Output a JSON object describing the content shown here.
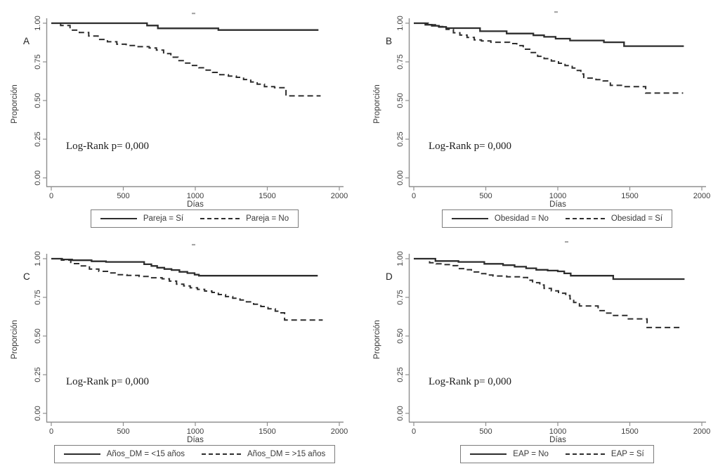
{
  "figure": {
    "background": "#ffffff",
    "line_color": "#2d2d2d",
    "axis_color": "#8f8f8f",
    "text_color": "#3d3d3d",
    "legend_border_color": "#7c7c7c"
  },
  "axes": {
    "x_label": "Días",
    "y_label": "Proporción",
    "x_ticks": [
      "0",
      "500",
      "1000",
      "1500",
      "2000"
    ],
    "y_ticks": [
      "1.00",
      "0.75",
      "0.50",
      "0.25",
      "0.00"
    ]
  },
  "chart_data": [
    {
      "type": "line",
      "subtype": "kaplan-meier-step",
      "panel": "A",
      "annotation": "Log-Rank p= 0,000",
      "xlabel": "Días",
      "ylabel": "Proporción",
      "xlim": [
        0,
        2000
      ],
      "ylim": [
        0,
        1
      ],
      "x_tick_values": [
        0,
        500,
        1000,
        1500,
        2000
      ],
      "y_tick_values": [
        1.0,
        0.75,
        0.5,
        0.25,
        0.0
      ],
      "grid": false,
      "legend_position": "bottom",
      "series": [
        {
          "name": "Pareja = Sí",
          "style": "solid",
          "points": [
            [
              0,
              1
            ],
            [
              665,
              0.985
            ],
            [
              740,
              0.967
            ],
            [
              1160,
              0.956
            ],
            [
              1855,
              0.956
            ]
          ]
        },
        {
          "name": "Pareja = No",
          "style": "dashed",
          "points": [
            [
              0,
              1
            ],
            [
              65,
              0.985
            ],
            [
              130,
              0.955
            ],
            [
              195,
              0.94
            ],
            [
              260,
              0.917
            ],
            [
              325,
              0.895
            ],
            [
              390,
              0.88
            ],
            [
              455,
              0.864
            ],
            [
              520,
              0.856
            ],
            [
              585,
              0.848
            ],
            [
              680,
              0.84
            ],
            [
              730,
              0.826
            ],
            [
              780,
              0.803
            ],
            [
              830,
              0.78
            ],
            [
              880,
              0.758
            ],
            [
              925,
              0.742
            ],
            [
              975,
              0.727
            ],
            [
              1025,
              0.712
            ],
            [
              1075,
              0.697
            ],
            [
              1120,
              0.682
            ],
            [
              1170,
              0.667
            ],
            [
              1230,
              0.658
            ],
            [
              1285,
              0.65
            ],
            [
              1335,
              0.636
            ],
            [
              1385,
              0.62
            ],
            [
              1430,
              0.606
            ],
            [
              1480,
              0.59
            ],
            [
              1550,
              0.583
            ],
            [
              1630,
              0.53
            ],
            [
              1870,
              0.53
            ]
          ]
        }
      ]
    },
    {
      "type": "line",
      "subtype": "kaplan-meier-step",
      "panel": "B",
      "annotation": "Log-Rank p= 0,000",
      "xlabel": "Días",
      "ylabel": "Proporción",
      "xlim": [
        0,
        2000
      ],
      "ylim": [
        0,
        1
      ],
      "x_tick_values": [
        0,
        500,
        1000,
        1500,
        2000
      ],
      "y_tick_values": [
        1.0,
        0.75,
        0.5,
        0.25,
        0.0
      ],
      "grid": false,
      "legend_position": "bottom",
      "series": [
        {
          "name": "Obesidad = No",
          "style": "solid",
          "points": [
            [
              0,
              1
            ],
            [
              80,
              0.99
            ],
            [
              125,
              0.983
            ],
            [
              175,
              0.976
            ],
            [
              225,
              0.968
            ],
            [
              460,
              0.948
            ],
            [
              645,
              0.933
            ],
            [
              830,
              0.922
            ],
            [
              905,
              0.912
            ],
            [
              985,
              0.9
            ],
            [
              1085,
              0.888
            ],
            [
              1320,
              0.877
            ],
            [
              1460,
              0.852
            ],
            [
              1875,
              0.852
            ]
          ]
        },
        {
          "name": "Obesidad = Sí",
          "style": "dashed",
          "points": [
            [
              0,
              1
            ],
            [
              100,
              0.99
            ],
            [
              160,
              0.978
            ],
            [
              225,
              0.96
            ],
            [
              275,
              0.938
            ],
            [
              320,
              0.923
            ],
            [
              370,
              0.908
            ],
            [
              420,
              0.892
            ],
            [
              470,
              0.885
            ],
            [
              535,
              0.877
            ],
            [
              665,
              0.868
            ],
            [
              715,
              0.855
            ],
            [
              760,
              0.832
            ],
            [
              810,
              0.81
            ],
            [
              860,
              0.786
            ],
            [
              905,
              0.771
            ],
            [
              955,
              0.756
            ],
            [
              1005,
              0.741
            ],
            [
              1050,
              0.726
            ],
            [
              1100,
              0.71
            ],
            [
              1135,
              0.694
            ],
            [
              1160,
              0.672
            ],
            [
              1180,
              0.645
            ],
            [
              1265,
              0.635
            ],
            [
              1315,
              0.627
            ],
            [
              1365,
              0.598
            ],
            [
              1450,
              0.59
            ],
            [
              1610,
              0.548
            ],
            [
              1870,
              0.548
            ]
          ]
        }
      ]
    },
    {
      "type": "line",
      "subtype": "kaplan-meier-step",
      "panel": "C",
      "annotation": "Log-Rank p= 0,000",
      "xlabel": "Días",
      "ylabel": "Proporción",
      "xlim": [
        0,
        2000
      ],
      "ylim": [
        0,
        1
      ],
      "x_tick_values": [
        0,
        500,
        1000,
        1500,
        2000
      ],
      "y_tick_values": [
        1.0,
        0.75,
        0.5,
        0.25,
        0.0
      ],
      "grid": false,
      "legend_position": "bottom",
      "series": [
        {
          "name": "Años_DM = <15 años",
          "style": "solid",
          "points": [
            [
              0,
              1
            ],
            [
              75,
              0.995
            ],
            [
              145,
              0.99
            ],
            [
              280,
              0.983
            ],
            [
              380,
              0.979
            ],
            [
              645,
              0.964
            ],
            [
              695,
              0.953
            ],
            [
              735,
              0.942
            ],
            [
              785,
              0.933
            ],
            [
              835,
              0.927
            ],
            [
              890,
              0.915
            ],
            [
              945,
              0.907
            ],
            [
              995,
              0.897
            ],
            [
              1025,
              0.89
            ],
            [
              1850,
              0.89
            ]
          ]
        },
        {
          "name": "Años_DM = >15 años",
          "style": "dashed",
          "points": [
            [
              0,
              1
            ],
            [
              70,
              0.991
            ],
            [
              135,
              0.968
            ],
            [
              200,
              0.953
            ],
            [
              265,
              0.933
            ],
            [
              330,
              0.918
            ],
            [
              395,
              0.908
            ],
            [
              460,
              0.897
            ],
            [
              525,
              0.892
            ],
            [
              610,
              0.885
            ],
            [
              690,
              0.877
            ],
            [
              770,
              0.87
            ],
            [
              820,
              0.855
            ],
            [
              870,
              0.835
            ],
            [
              920,
              0.824
            ],
            [
              965,
              0.812
            ],
            [
              1015,
              0.802
            ],
            [
              1065,
              0.791
            ],
            [
              1115,
              0.782
            ],
            [
              1160,
              0.768
            ],
            [
              1210,
              0.755
            ],
            [
              1260,
              0.744
            ],
            [
              1310,
              0.733
            ],
            [
              1355,
              0.721
            ],
            [
              1405,
              0.706
            ],
            [
              1455,
              0.691
            ],
            [
              1505,
              0.676
            ],
            [
              1555,
              0.661
            ],
            [
              1595,
              0.65
            ],
            [
              1620,
              0.603
            ],
            [
              1885,
              0.603
            ]
          ]
        }
      ]
    },
    {
      "type": "line",
      "subtype": "kaplan-meier-step",
      "panel": "D",
      "annotation": "Log-Rank p= 0,000",
      "xlabel": "Días",
      "ylabel": "Proporción",
      "xlim": [
        0,
        2000
      ],
      "ylim": [
        0,
        1
      ],
      "x_tick_values": [
        0,
        500,
        1000,
        1500,
        2000
      ],
      "y_tick_values": [
        1.0,
        0.75,
        0.5,
        0.25,
        0.0
      ],
      "grid": false,
      "legend_position": "bottom",
      "series": [
        {
          "name": "EAP = No",
          "style": "solid",
          "points": [
            [
              0,
              1
            ],
            [
              150,
              0.985
            ],
            [
              310,
              0.979
            ],
            [
              490,
              0.967
            ],
            [
              620,
              0.958
            ],
            [
              700,
              0.948
            ],
            [
              780,
              0.938
            ],
            [
              850,
              0.928
            ],
            [
              930,
              0.923
            ],
            [
              1000,
              0.918
            ],
            [
              1045,
              0.905
            ],
            [
              1090,
              0.89
            ],
            [
              1385,
              0.868
            ],
            [
              1880,
              0.868
            ]
          ]
        },
        {
          "name": "EAP = Sí",
          "style": "dashed",
          "points": [
            [
              0,
              1
            ],
            [
              110,
              0.974
            ],
            [
              155,
              0.967
            ],
            [
              205,
              0.962
            ],
            [
              255,
              0.955
            ],
            [
              305,
              0.936
            ],
            [
              355,
              0.929
            ],
            [
              400,
              0.914
            ],
            [
              450,
              0.903
            ],
            [
              500,
              0.894
            ],
            [
              550,
              0.888
            ],
            [
              645,
              0.883
            ],
            [
              745,
              0.878
            ],
            [
              790,
              0.861
            ],
            [
              825,
              0.845
            ],
            [
              875,
              0.83
            ],
            [
              905,
              0.808
            ],
            [
              955,
              0.792
            ],
            [
              1005,
              0.777
            ],
            [
              1055,
              0.762
            ],
            [
              1085,
              0.74
            ],
            [
              1110,
              0.717
            ],
            [
              1150,
              0.694
            ],
            [
              1280,
              0.664
            ],
            [
              1330,
              0.648
            ],
            [
              1375,
              0.633
            ],
            [
              1490,
              0.611
            ],
            [
              1620,
              0.555
            ],
            [
              1860,
              0.555
            ]
          ]
        }
      ]
    }
  ]
}
